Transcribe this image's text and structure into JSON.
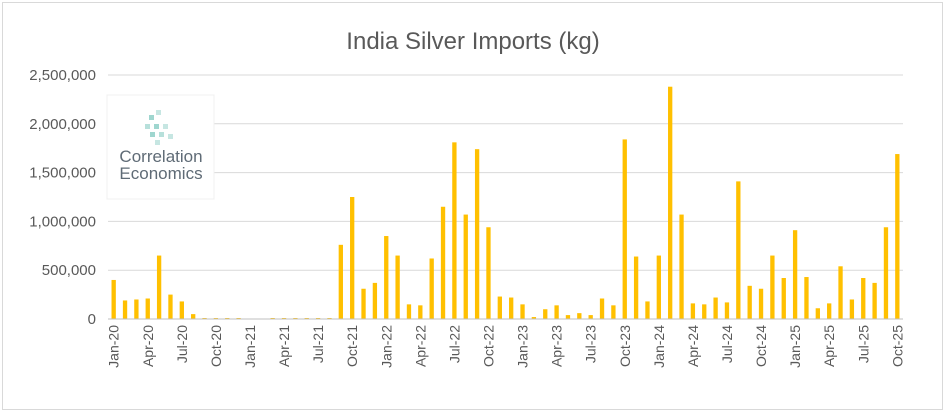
{
  "chart_data": {
    "type": "bar",
    "title": "India Silver Imports (kg)",
    "xlabel": "",
    "ylabel": "",
    "ylim": [
      0,
      2500000
    ],
    "yticks": [
      0,
      500000,
      1000000,
      1500000,
      2000000,
      2500000
    ],
    "ytick_labels": [
      "0",
      "500,000",
      "1,000,000",
      "1,500,000",
      "2,000,000",
      "2,500,000"
    ],
    "grid": true,
    "legend": "none",
    "bar_color": "#FFC000",
    "categories": [
      "Jan-20",
      "Feb-20",
      "Mar-20",
      "Apr-20",
      "May-20",
      "Jun-20",
      "Jul-20",
      "Aug-20",
      "Sep-20",
      "Oct-20",
      "Nov-20",
      "Dec-20",
      "Jan-21",
      "Feb-21",
      "Mar-21",
      "Apr-21",
      "May-21",
      "Jun-21",
      "Jul-21",
      "Aug-21",
      "Sep-21",
      "Oct-21",
      "Nov-21",
      "Dec-21",
      "Jan-22",
      "Feb-22",
      "Mar-22",
      "Apr-22",
      "May-22",
      "Jun-22",
      "Jul-22",
      "Aug-22",
      "Sep-22",
      "Oct-22",
      "Nov-22",
      "Dec-22",
      "Jan-23",
      "Feb-23",
      "Mar-23",
      "Apr-23",
      "May-23",
      "Jun-23",
      "Jul-23",
      "Aug-23",
      "Sep-23",
      "Oct-23",
      "Nov-23",
      "Dec-23",
      "Jan-24",
      "Feb-24",
      "Mar-24",
      "Apr-24",
      "May-24",
      "Jun-24",
      "Jul-24",
      "Aug-24",
      "Sep-24",
      "Oct-24",
      "Nov-24",
      "Dec-24",
      "Jan-25",
      "Feb-25",
      "Mar-25",
      "Apr-25",
      "May-25",
      "Jun-25",
      "Jul-25",
      "Aug-25",
      "Sep-25",
      "Oct-25"
    ],
    "values": [
      400000,
      190000,
      200000,
      210000,
      650000,
      250000,
      180000,
      50000,
      10000,
      10000,
      10000,
      10000,
      5000,
      5000,
      10000,
      10000,
      10000,
      10000,
      10000,
      10000,
      760000,
      1250000,
      310000,
      370000,
      850000,
      650000,
      150000,
      140000,
      620000,
      1150000,
      1810000,
      1070000,
      1740000,
      940000,
      230000,
      220000,
      150000,
      20000,
      100000,
      140000,
      40000,
      60000,
      40000,
      210000,
      140000,
      1840000,
      640000,
      180000,
      650000,
      2380000,
      1070000,
      160000,
      150000,
      220000,
      170000,
      1410000,
      340000,
      310000,
      650000,
      420000,
      910000,
      430000,
      110000,
      160000,
      540000,
      200000,
      420000,
      370000,
      940000,
      1690000
    ],
    "xtick_every": 3
  },
  "logo": {
    "line1": "Correlation",
    "line2": "Economics"
  }
}
